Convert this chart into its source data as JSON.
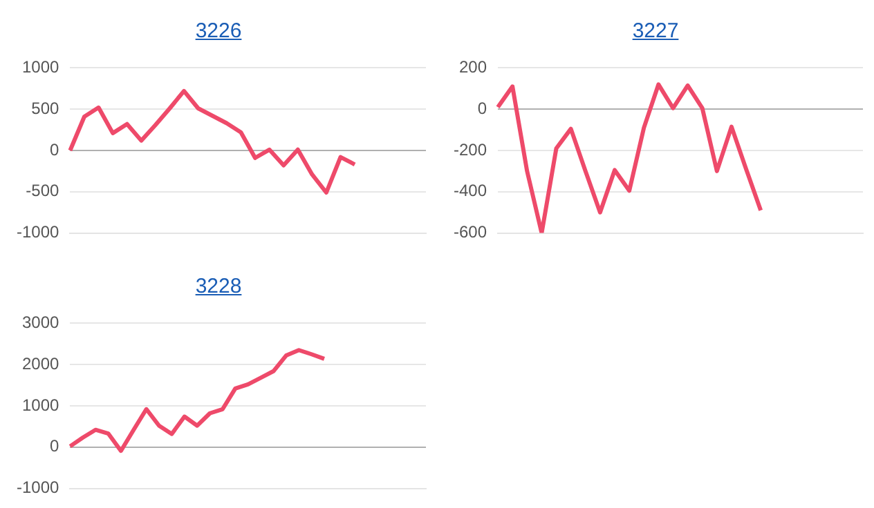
{
  "chart_data": [
    {
      "type": "line",
      "title": "3226",
      "categories": [
        null,
        null,
        null,
        null,
        null,
        null,
        null,
        null,
        null,
        null,
        null,
        null,
        null,
        null,
        null,
        null,
        null,
        null,
        null,
        null,
        null,
        null,
        null,
        null,
        null,
        null
      ],
      "series": [
        {
          "color": "#ee4a6a",
          "values": [
            0,
            410,
            520,
            210,
            320,
            120,
            310,
            510,
            720,
            510,
            420,
            330,
            220,
            -90,
            10,
            -180,
            10,
            -290,
            -510,
            -80,
            -170,
            null,
            null,
            null,
            null,
            null
          ]
        }
      ],
      "ylim": [
        -1000,
        1000
      ],
      "yticks": [
        -1000,
        -500,
        0,
        500,
        1000
      ],
      "grid": "y",
      "marker": "none",
      "line_style": "solid",
      "tick_labels": "y"
    },
    {
      "type": "line",
      "title": "3227",
      "categories": [
        null,
        null,
        null,
        null,
        null,
        null,
        null,
        null,
        null,
        null,
        null,
        null,
        null,
        null,
        null,
        null,
        null,
        null,
        null,
        null,
        null,
        null,
        null,
        null,
        null,
        null
      ],
      "series": [
        {
          "color": "#ee4a6a",
          "values": [
            10,
            110,
            -300,
            -600,
            -190,
            -95,
            -300,
            -500,
            -295,
            -395,
            -90,
            120,
            5,
            115,
            5,
            -300,
            -85,
            -290,
            -490,
            null,
            null,
            null,
            null,
            null,
            null,
            null
          ]
        }
      ],
      "ylim": [
        -600,
        200
      ],
      "yticks": [
        -600,
        -400,
        -200,
        0,
        200
      ],
      "grid": "y",
      "marker": "none",
      "line_style": "solid",
      "tick_labels": "y"
    },
    {
      "type": "line",
      "title": "3228",
      "categories": [
        null,
        null,
        null,
        null,
        null,
        null,
        null,
        null,
        null,
        null,
        null,
        null,
        null,
        null,
        null,
        null,
        null,
        null,
        null,
        null,
        null,
        null,
        null,
        null,
        null,
        null,
        null,
        null,
        null
      ],
      "series": [
        {
          "color": "#ee4a6a",
          "values": [
            20,
            230,
            420,
            330,
            -90,
            420,
            920,
            520,
            320,
            740,
            520,
            820,
            920,
            1420,
            1520,
            1680,
            1840,
            2220,
            2350,
            2250,
            2140,
            null,
            null,
            null,
            null,
            null,
            null,
            null,
            null
          ]
        }
      ],
      "ylim": [
        -1000,
        3000
      ],
      "yticks": [
        -1000,
        0,
        1000,
        2000,
        3000
      ],
      "grid": "y",
      "marker": "none",
      "line_style": "solid",
      "tick_labels": "y"
    }
  ]
}
